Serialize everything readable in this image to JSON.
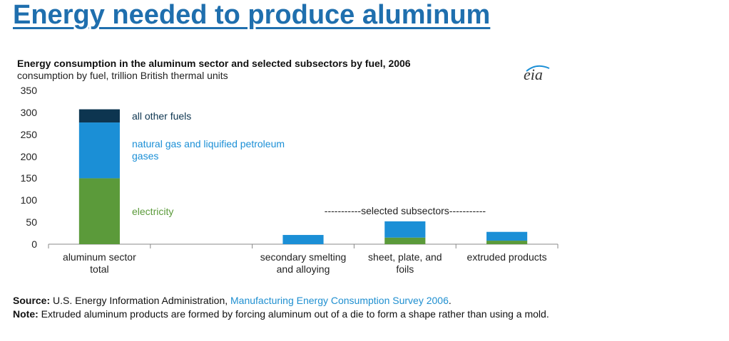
{
  "header": {
    "title": "Energy needed to produce aluminum"
  },
  "chart_data": {
    "type": "stacked-bar",
    "title": "Energy consumption in the aluminum sector and selected subsectors by fuel, 2006",
    "subtitle": "consumption by fuel, trillion British thermal units",
    "logo": "eia",
    "categories": [
      "aluminum sector total",
      null,
      "secondary smelting and alloying",
      "sheet, plate, and foils",
      "extruded products"
    ],
    "series": [
      {
        "name": "electricity",
        "color": "#5b9a3a",
        "values": [
          150,
          null,
          0,
          15,
          8
        ]
      },
      {
        "name": "natural gas and liquified petroleum gases",
        "color": "#1b8fd6",
        "values": [
          127,
          null,
          21,
          37,
          20
        ]
      },
      {
        "name": "all other fuels",
        "color": "#0d3550",
        "values": [
          30,
          null,
          0,
          0,
          0
        ]
      }
    ],
    "ylim": [
      0,
      350
    ],
    "yticks": [
      0,
      50,
      100,
      150,
      200,
      250,
      300,
      350
    ],
    "grid": false,
    "annotation": "-----------selected  subsectors-----------"
  },
  "footer": {
    "source_label": "Source:",
    "source_text": "U.S. Energy Information Administration,",
    "source_link": "Manufacturing Energy Consumption Survey 2006",
    "source_end": ".",
    "note_label": "Note:",
    "note_text": "Extruded aluminum products are formed by forcing aluminum out of a die to form a shape rather than using a mold."
  }
}
